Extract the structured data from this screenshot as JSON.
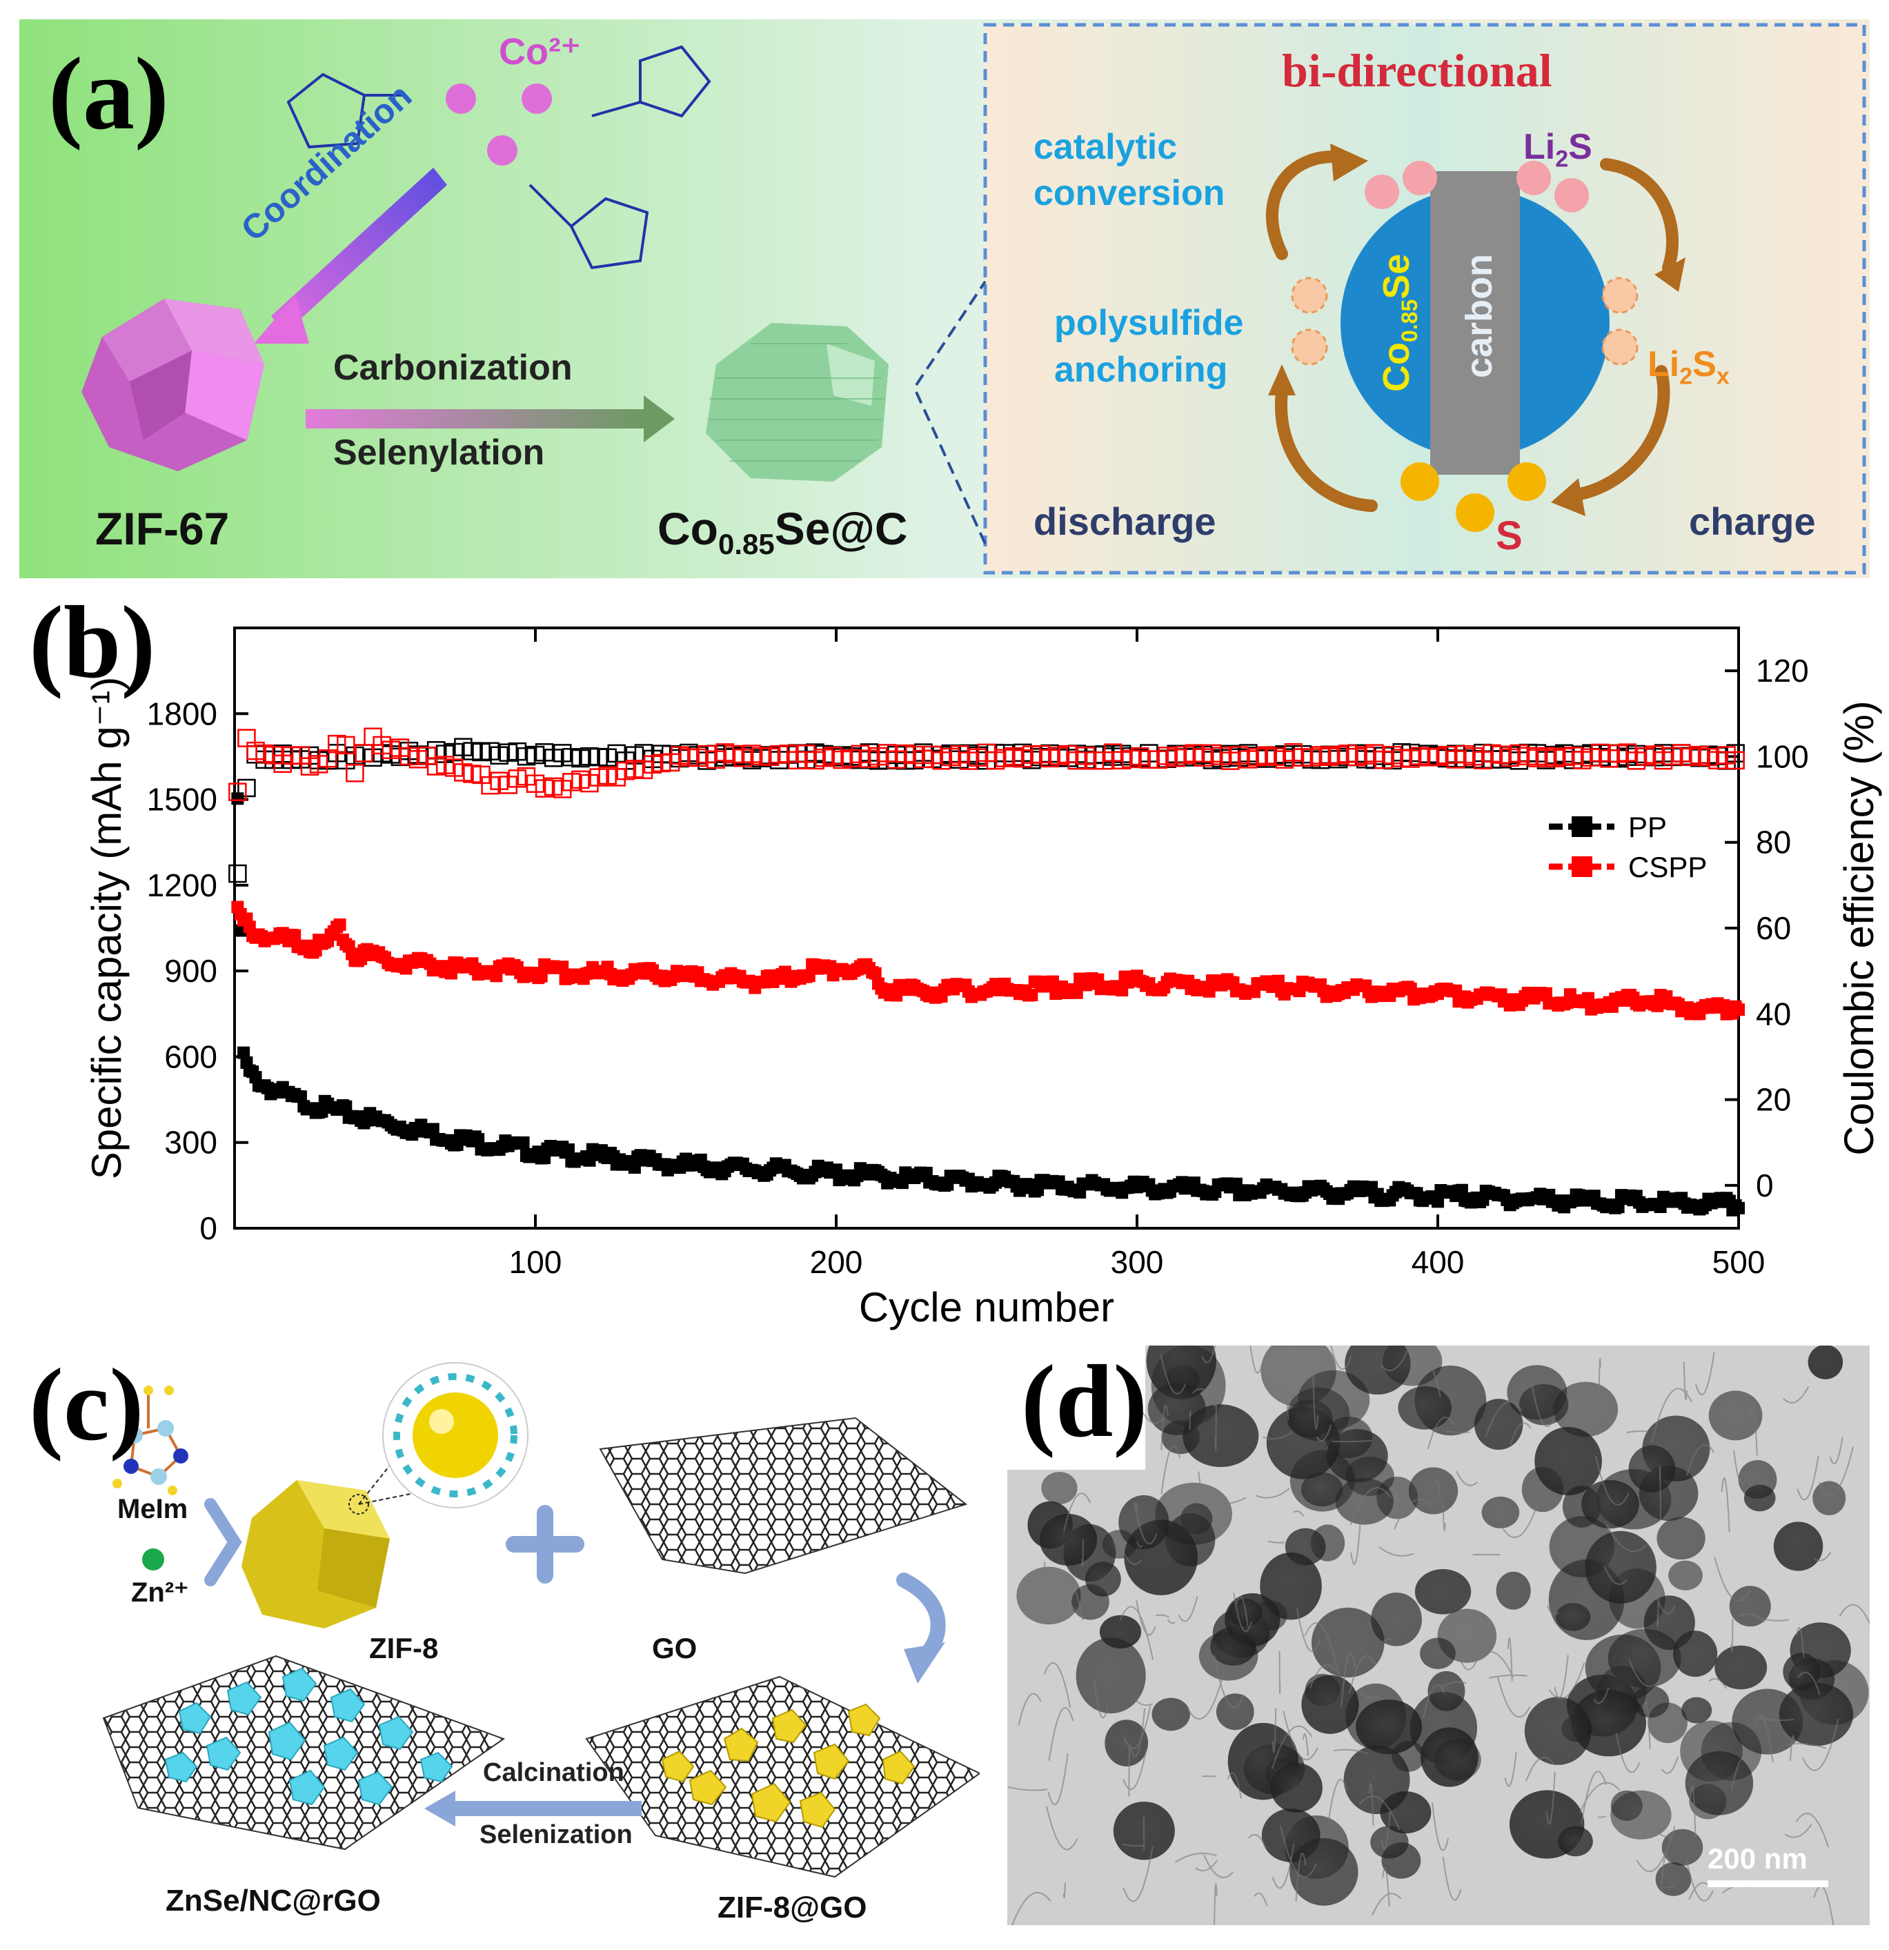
{
  "panel_a": {
    "letter": "(a)",
    "co_ion": "Co²⁺",
    "coordination": "Coordination",
    "carbonization": "Carbonization",
    "selenylation": "Selenylation",
    "zif67": "ZIF-67",
    "product_main": "Co",
    "product_sub": "0.85",
    "product_tail": "Se@C",
    "bi_directional": "bi-directional",
    "catalytic_1": "catalytic",
    "catalytic_2": "conversion",
    "polysulfide_1": "polysulfide",
    "polysulfide_2": "anchoring",
    "li2s_main": "Li",
    "li2s_sub": "2",
    "li2s_tail": "S",
    "li2sx_main": "Li",
    "li2sx_sub": "2",
    "li2sx_mid": "S",
    "li2sx_subx": "x",
    "carbon": "carbon",
    "coSe_main": "Co",
    "coSe_sub": "0.85",
    "coSe_tail": "Se",
    "discharge": "discharge",
    "charge": "charge",
    "sulfur": "S"
  },
  "panel_b": {
    "letter": "(b)"
  },
  "chart_data": {
    "type": "scatter",
    "xlabel": "Cycle number",
    "ylabel_left": "Specific capacity (mAh g⁻¹)",
    "ylabel_right": "Coulombic efficiency (%)",
    "xlim": [
      0,
      500
    ],
    "ylim_left": [
      0,
      2100
    ],
    "ylim_right": [
      -10,
      130
    ],
    "x_ticks": [
      100,
      200,
      300,
      400,
      500
    ],
    "y_left_ticks": [
      0,
      300,
      600,
      900,
      1200,
      1500,
      1800
    ],
    "y_right_ticks": [
      0,
      20,
      40,
      60,
      80,
      100,
      120
    ],
    "legend_position": "right",
    "series": [
      {
        "name": "PP",
        "color": "#000000",
        "capacity": {
          "x": [
            1,
            3,
            5,
            10,
            20,
            30,
            50,
            75,
            100,
            150,
            200,
            250,
            300,
            350,
            400,
            450,
            500
          ],
          "y": [
            1480,
            600,
            540,
            500,
            450,
            420,
            370,
            310,
            270,
            220,
            190,
            160,
            140,
            130,
            115,
            95,
            80
          ]
        },
        "efficiency": {
          "x": [
            1,
            5,
            20,
            50,
            75,
            100,
            150,
            200,
            250,
            300,
            350,
            400,
            450,
            500
          ],
          "y": [
            72,
            100,
            100,
            100,
            102,
            100,
            100,
            100,
            100,
            100,
            100,
            100,
            100,
            100
          ]
        }
      },
      {
        "name": "CSPP",
        "color": "#ff0000",
        "capacity": {
          "x": [
            1,
            5,
            10,
            20,
            30,
            35,
            40,
            50,
            75,
            100,
            150,
            180,
            190,
            200,
            210,
            215,
            220,
            250,
            300,
            350,
            400,
            430,
            450,
            470,
            490,
            500
          ],
          "y": [
            1100,
            1050,
            1020,
            1000,
            980,
            1050,
            960,
            940,
            910,
            900,
            880,
            860,
            900,
            910,
            900,
            850,
            830,
            830,
            860,
            840,
            820,
            800,
            790,
            800,
            760,
            780
          ]
        },
        "efficiency": {
          "x": [
            1,
            3,
            5,
            8,
            15,
            20,
            30,
            35,
            40,
            45,
            90,
            95,
            105,
            150,
            200,
            250,
            300,
            350,
            400,
            450,
            500
          ],
          "y": [
            92,
            107,
            100,
            103,
            98,
            100,
            97,
            105,
            97,
            104,
            93,
            96,
            92,
            100,
            100,
            100,
            100,
            100,
            100,
            100,
            100
          ]
        }
      }
    ]
  },
  "panel_c": {
    "letter": "(c)",
    "melm": "MeIm",
    "zn_ion": "Zn²⁺",
    "zif8": "ZIF-8",
    "go": "GO",
    "calcination": "Calcination",
    "selenization": "Selenization",
    "product": "ZnSe/NC@rGO",
    "zif8go": "ZIF-8@GO"
  },
  "panel_d": {
    "letter": "(d)",
    "scale_bar": "200 nm"
  }
}
